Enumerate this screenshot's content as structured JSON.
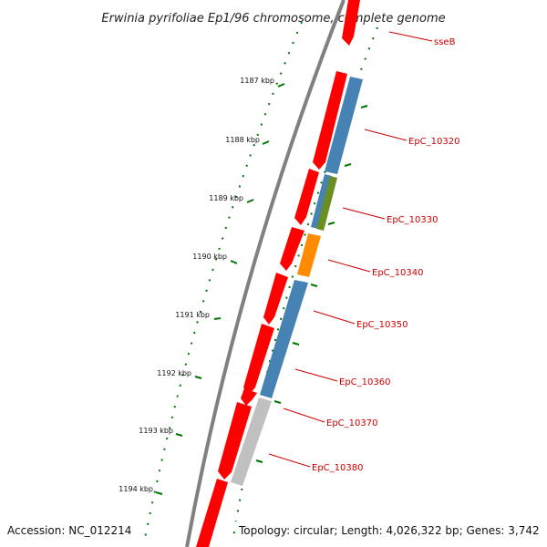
{
  "title": "Erwinia pyrifoliae Ep1/96 chromosome, complete genome",
  "footer": {
    "accession": "Accession: NC_012214",
    "topology": "Topology: circular; Length: 4,026,322 bp; Genes: 3,742"
  },
  "ticks": [
    {
      "label": "1187 kbp"
    },
    {
      "label": "1188 kbp"
    },
    {
      "label": "1189 kbp"
    },
    {
      "label": "1190 kbp"
    },
    {
      "label": "1191 kbp"
    },
    {
      "label": "1192 kbp"
    },
    {
      "label": "1193 kbp"
    },
    {
      "label": "1194 kbp"
    }
  ],
  "genes": [
    {
      "label": "sseB"
    },
    {
      "label": "EpC_10320"
    },
    {
      "label": "EpC_10330"
    },
    {
      "label": "EpC_10340"
    },
    {
      "label": "EpC_10350"
    },
    {
      "label": "EpC_10360"
    },
    {
      "label": "EpC_10370"
    },
    {
      "label": "EpC_10380"
    }
  ],
  "colors": {
    "cds": "#ff0000",
    "blue": "#4682b4",
    "olive": "#6b8e23",
    "orange": "#ff8c00",
    "gray": "#c0c0c0",
    "backbone": "#808080",
    "ticks": "#007700",
    "label": "#cc0000"
  }
}
